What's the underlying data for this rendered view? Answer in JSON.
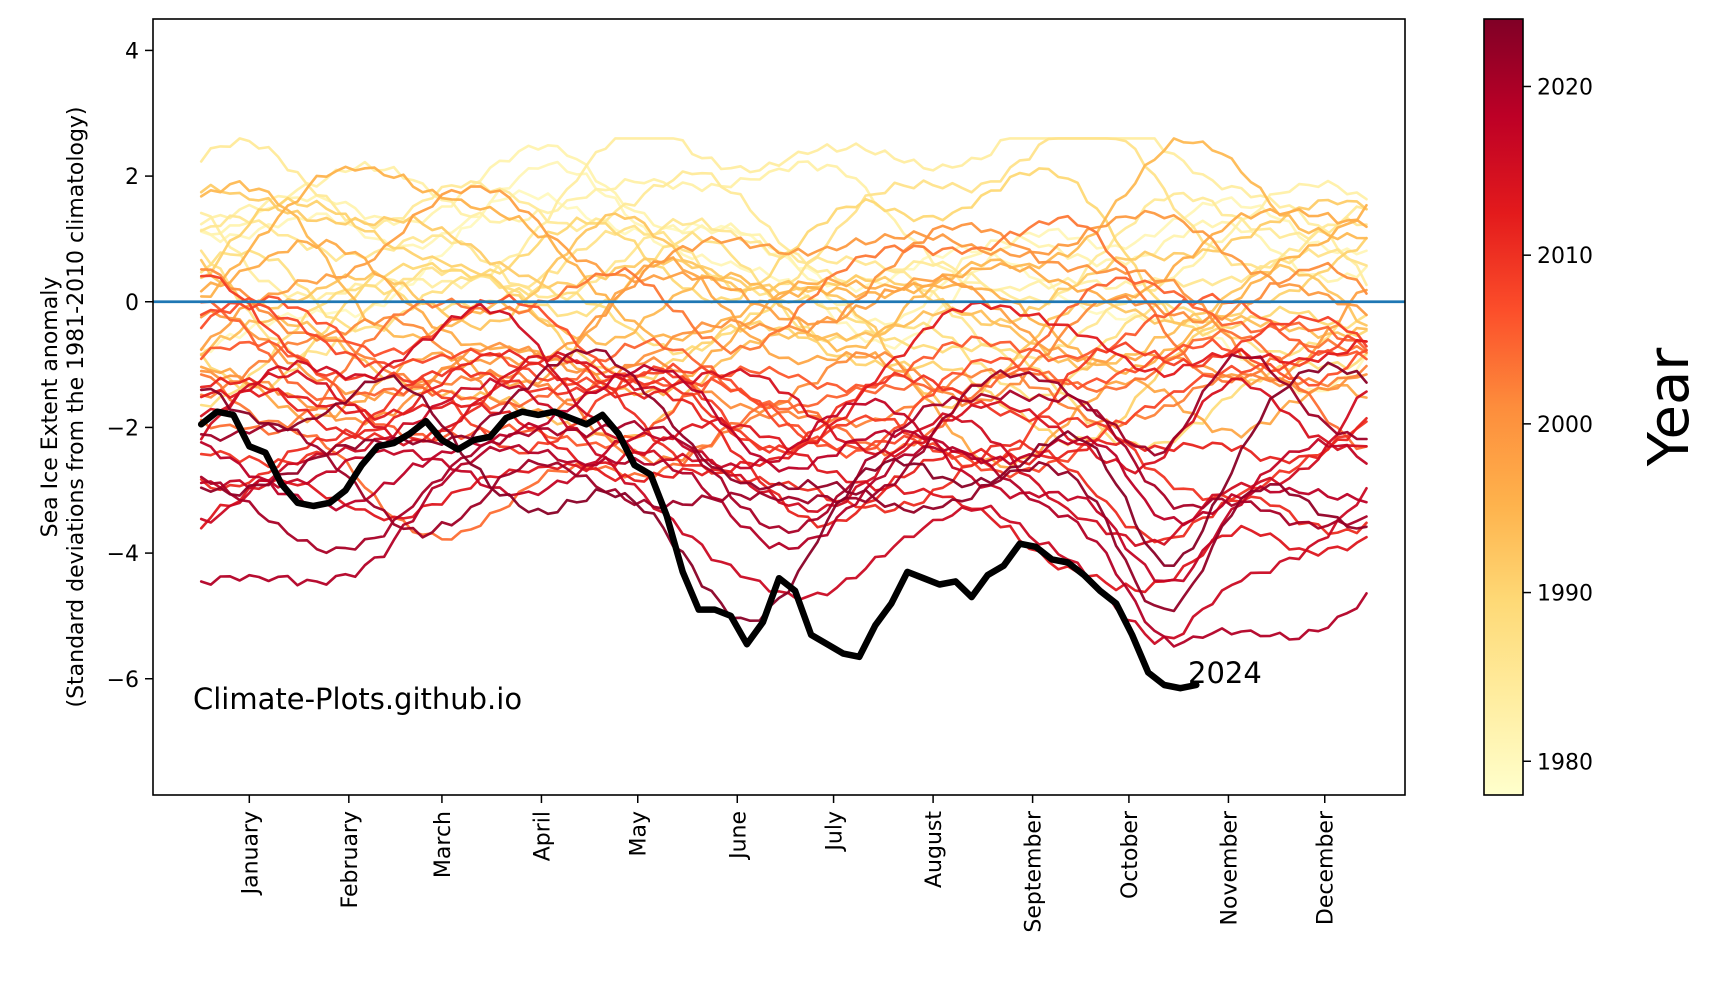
{
  "chart_data": {
    "type": "line",
    "title": "",
    "xlabel": "",
    "ylabel": "Sea Ice Extent anomaly\n(Standard deviations from the 1981-2010 climatology)",
    "x_unit": "day of year",
    "xlim": [
      -15,
      375
    ],
    "ylim": [
      -7.85,
      4.5
    ],
    "yticks": [
      -6,
      -4,
      -2,
      0,
      2,
      4
    ],
    "ytick_labels": [
      "−6",
      "−4",
      "−2",
      "0",
      "2",
      "4"
    ],
    "month_ticks": [
      {
        "label": "January",
        "day": 15
      },
      {
        "label": "February",
        "day": 46
      },
      {
        "label": "March",
        "day": 75
      },
      {
        "label": "April",
        "day": 106
      },
      {
        "label": "May",
        "day": 136
      },
      {
        "label": "June",
        "day": 167
      },
      {
        "label": "July",
        "day": 197
      },
      {
        "label": "August",
        "day": 228
      },
      {
        "label": "September",
        "day": 259
      },
      {
        "label": "October",
        "day": 289
      },
      {
        "label": "November",
        "day": 320
      },
      {
        "label": "December",
        "day": 350
      }
    ],
    "reference_line": {
      "y": 0,
      "color": "#1f77b4"
    },
    "colormap": "YlOrRd",
    "colorbar": {
      "label": "Year",
      "range": [
        1978,
        2024
      ],
      "ticks": [
        1980,
        1990,
        2000,
        2010,
        2020
      ],
      "tick_labels": [
        "1980",
        "1990",
        "2000",
        "2010",
        "2020"
      ]
    },
    "highlight_series": {
      "name": "2024",
      "color": "#000000",
      "x": [
        0,
        5,
        10,
        15,
        20,
        25,
        30,
        35,
        40,
        45,
        50,
        55,
        60,
        65,
        70,
        75,
        80,
        85,
        90,
        95,
        100,
        105,
        110,
        115,
        120,
        125,
        130,
        135,
        140,
        145,
        150,
        155,
        160,
        165,
        170,
        175,
        180,
        185,
        190,
        195,
        200,
        205,
        210,
        215,
        220,
        225,
        230,
        235,
        240,
        245,
        250,
        255,
        260,
        265,
        270,
        275,
        280,
        285,
        290,
        295,
        300,
        305,
        310
      ],
      "y": [
        -1.95,
        -1.75,
        -1.8,
        -2.3,
        -2.4,
        -2.9,
        -3.2,
        -3.25,
        -3.2,
        -3.0,
        -2.6,
        -2.3,
        -2.25,
        -2.1,
        -1.9,
        -2.2,
        -2.35,
        -2.2,
        -2.15,
        -1.85,
        -1.75,
        -1.8,
        -1.75,
        -1.85,
        -1.95,
        -1.8,
        -2.1,
        -2.6,
        -2.75,
        -3.4,
        -4.3,
        -4.9,
        -4.9,
        -5.0,
        -5.45,
        -5.1,
        -4.4,
        -4.6,
        -5.3,
        -5.45,
        -5.6,
        -5.65,
        -5.15,
        -4.8,
        -4.3,
        -4.4,
        -4.5,
        -4.45,
        -4.7,
        -4.35,
        -4.2,
        -3.85,
        -3.9,
        -4.1,
        -4.15,
        -4.35,
        -4.6,
        -4.8,
        -5.3,
        -5.9,
        -6.1,
        -6.15,
        -6.1
      ]
    },
    "series_note": "one line per year 1978-2024, colored by year (YlOrRd colormap)"
  },
  "annotations": {
    "watermark": "Climate-Plots.github.io",
    "highlight_label": "2024"
  },
  "colors": {
    "reference_line": "#1f77b4",
    "highlight": "#000000",
    "colormap_stops": [
      "#ffffcc",
      "#ffeda0",
      "#fed976",
      "#feb24c",
      "#fd8d3c",
      "#fc4e2a",
      "#e31a1c",
      "#bd0026",
      "#800026"
    ]
  }
}
